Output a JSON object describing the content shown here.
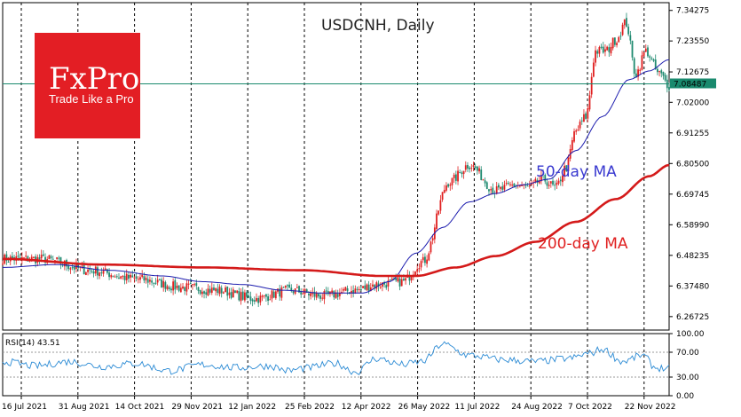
{
  "brand": {
    "name": "FxPro",
    "tagline": "Trade Like a Pro",
    "color": "#e31e24"
  },
  "chart_data": {
    "type": "line",
    "title": "USDCNH, Daily",
    "ylim": [
      6.22,
      7.37
    ],
    "y_ticks": [
      "7.34275",
      "7.23550",
      "7.12675",
      "7.02000",
      "6.91255",
      "6.80500",
      "6.69745",
      "6.58990",
      "6.48235",
      "6.37480",
      "6.26725"
    ],
    "y_tick_values": [
      7.34275,
      7.2355,
      7.12675,
      7.02,
      6.91255,
      6.805,
      6.69745,
      6.5899,
      6.48235,
      6.3748,
      6.26725
    ],
    "x_ticks": [
      "16 Jul 2021",
      "31 Aug 2021",
      "14 Oct 2021",
      "29 Nov 2021",
      "12 Jan 2022",
      "25 Feb 2022",
      "12 Apr 2022",
      "26 May 2022",
      "11 Jul 2022",
      "24 Aug 2022",
      "7 Oct 2022",
      "22 Nov 2022"
    ],
    "current_price": {
      "label": "7.08487",
      "value": 7.08487,
      "color": "#1a8a6e"
    },
    "annotations": [
      {
        "text": "50-day MA",
        "color": "#3a3ad0"
      },
      {
        "text": "200-day MA",
        "color": "#e02020"
      }
    ],
    "series": [
      {
        "id": "price",
        "type": "candlestick",
        "colors": {
          "up": "#e02020",
          "down": "#1f8a70"
        },
        "anchors_x": [
          0.0,
          0.06,
          0.13,
          0.2,
          0.27,
          0.32,
          0.38,
          0.43,
          0.48,
          0.53,
          0.56,
          0.6,
          0.63,
          0.67,
          0.7,
          0.74,
          0.77,
          0.79,
          0.81,
          0.83,
          0.845,
          0.86,
          0.875,
          0.89,
          0.905,
          0.92,
          0.935,
          0.95,
          0.965,
          0.985,
          1.0
        ],
        "anchors_y": [
          6.47,
          6.47,
          6.43,
          6.4,
          6.37,
          6.36,
          6.33,
          6.36,
          6.34,
          6.36,
          6.38,
          6.39,
          6.46,
          6.74,
          6.8,
          6.71,
          6.73,
          6.72,
          6.75,
          6.72,
          6.79,
          6.92,
          6.97,
          7.2,
          7.2,
          7.24,
          7.3,
          7.12,
          7.2,
          7.12,
          7.08
        ]
      },
      {
        "id": "ma50",
        "name": "50-day MA",
        "type": "line",
        "color": "#1c1cae",
        "anchors_x": [
          0.0,
          0.08,
          0.16,
          0.24,
          0.3,
          0.36,
          0.42,
          0.48,
          0.54,
          0.58,
          0.62,
          0.66,
          0.7,
          0.74,
          0.78,
          0.82,
          0.86,
          0.9,
          0.94,
          0.97,
          1.0
        ],
        "anchors_y": [
          6.44,
          6.45,
          6.43,
          6.41,
          6.39,
          6.38,
          6.36,
          6.35,
          6.35,
          6.39,
          6.49,
          6.58,
          6.67,
          6.7,
          6.73,
          6.75,
          6.85,
          6.97,
          7.1,
          7.13,
          7.17
        ]
      },
      {
        "id": "ma200",
        "name": "200-day MA",
        "type": "line",
        "color": "#d41a1a",
        "anchors_x": [
          0.0,
          0.15,
          0.3,
          0.45,
          0.57,
          0.62,
          0.68,
          0.74,
          0.8,
          0.86,
          0.92,
          0.97,
          1.0
        ],
        "anchors_y": [
          6.47,
          6.45,
          6.44,
          6.43,
          6.41,
          6.41,
          6.44,
          6.48,
          6.53,
          6.6,
          6.68,
          6.76,
          6.8
        ]
      }
    ],
    "rsi": {
      "label": "RSI(14) 43.51",
      "ylim": [
        0,
        100
      ],
      "y_ticks": [
        "100.00",
        "70.00",
        "30.00",
        "0.00"
      ],
      "y_tick_values": [
        100,
        70,
        30,
        0
      ],
      "levels": [
        70,
        30
      ],
      "color": "#2a8ad4",
      "anchors_x": [
        0.0,
        0.05,
        0.1,
        0.15,
        0.2,
        0.25,
        0.3,
        0.35,
        0.4,
        0.43,
        0.45,
        0.5,
        0.53,
        0.56,
        0.6,
        0.63,
        0.66,
        0.7,
        0.75,
        0.8,
        0.85,
        0.88,
        0.9,
        0.93,
        0.96,
        0.98,
        1.0
      ],
      "anchors_y": [
        55,
        48,
        55,
        47,
        52,
        40,
        50,
        45,
        48,
        40,
        44,
        52,
        38,
        60,
        50,
        55,
        83,
        65,
        58,
        55,
        60,
        68,
        75,
        55,
        65,
        45,
        43.51
      ]
    }
  }
}
